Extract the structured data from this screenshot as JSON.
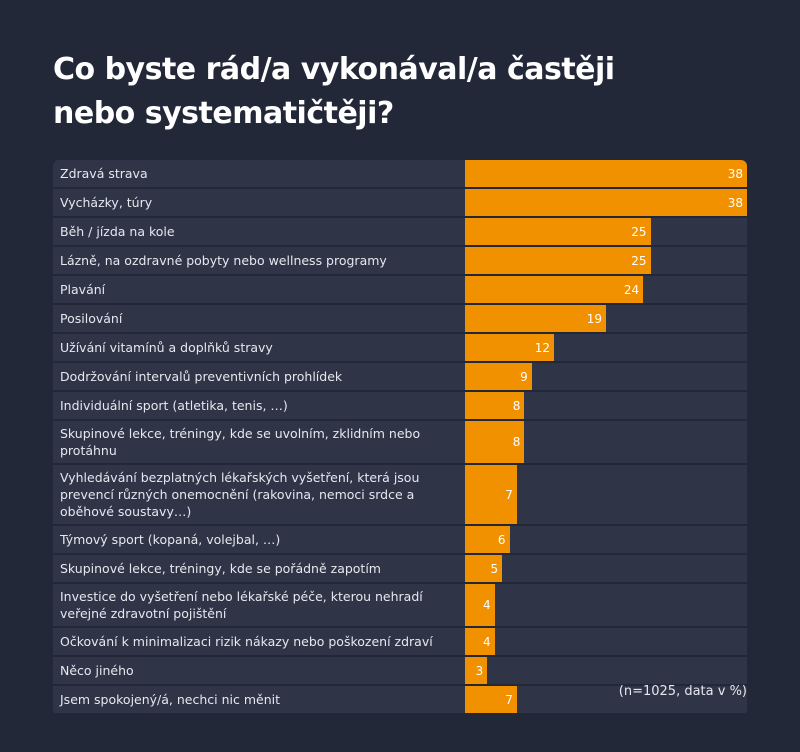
{
  "chart_data": {
    "type": "bar",
    "orientation": "horizontal",
    "title": "Co byste rád/a vykonával/a častěji nebo systematičtěji?",
    "note": "(n=1025, data v %)",
    "categories": [
      "Zdravá strava",
      "Vycházky, túry",
      "Běh / jízda na kole",
      "Lázně, na ozdravné pobyty nebo wellness programy",
      "Plavání",
      "Posilování",
      "Užívání vitamínů a doplňků stravy",
      "Dodržování intervalů preventivních prohlídek",
      "Individuální sport (atletika, tenis, …)",
      "Skupinové lekce, tréningy, kde se uvolním, zklidním nebo protáhnu",
      "Vyhledávání bezplatných lékařských vyšetření, která jsou prevencí různých onemocnění (rakovina, nemoci srdce a oběhové soustavy…)",
      "Týmový sport (kopaná, volejbal, …)",
      "Skupinové lekce, tréningy, kde se pořádně zapotím",
      "Investice do vyšetření nebo lékařské péče, kterou nehradí veřejné zdravotní pojištění",
      "Očkování k minimalizaci rizik nákazy nebo poškození zdraví",
      "Něco jiného",
      "Jsem spokojený/á, nechci nic měnit"
    ],
    "values": [
      38,
      38,
      25,
      25,
      24,
      19,
      12,
      9,
      8,
      8,
      7,
      6,
      5,
      4,
      4,
      3,
      7
    ],
    "color": "#f29100",
    "xlim": [
      0,
      38
    ]
  }
}
